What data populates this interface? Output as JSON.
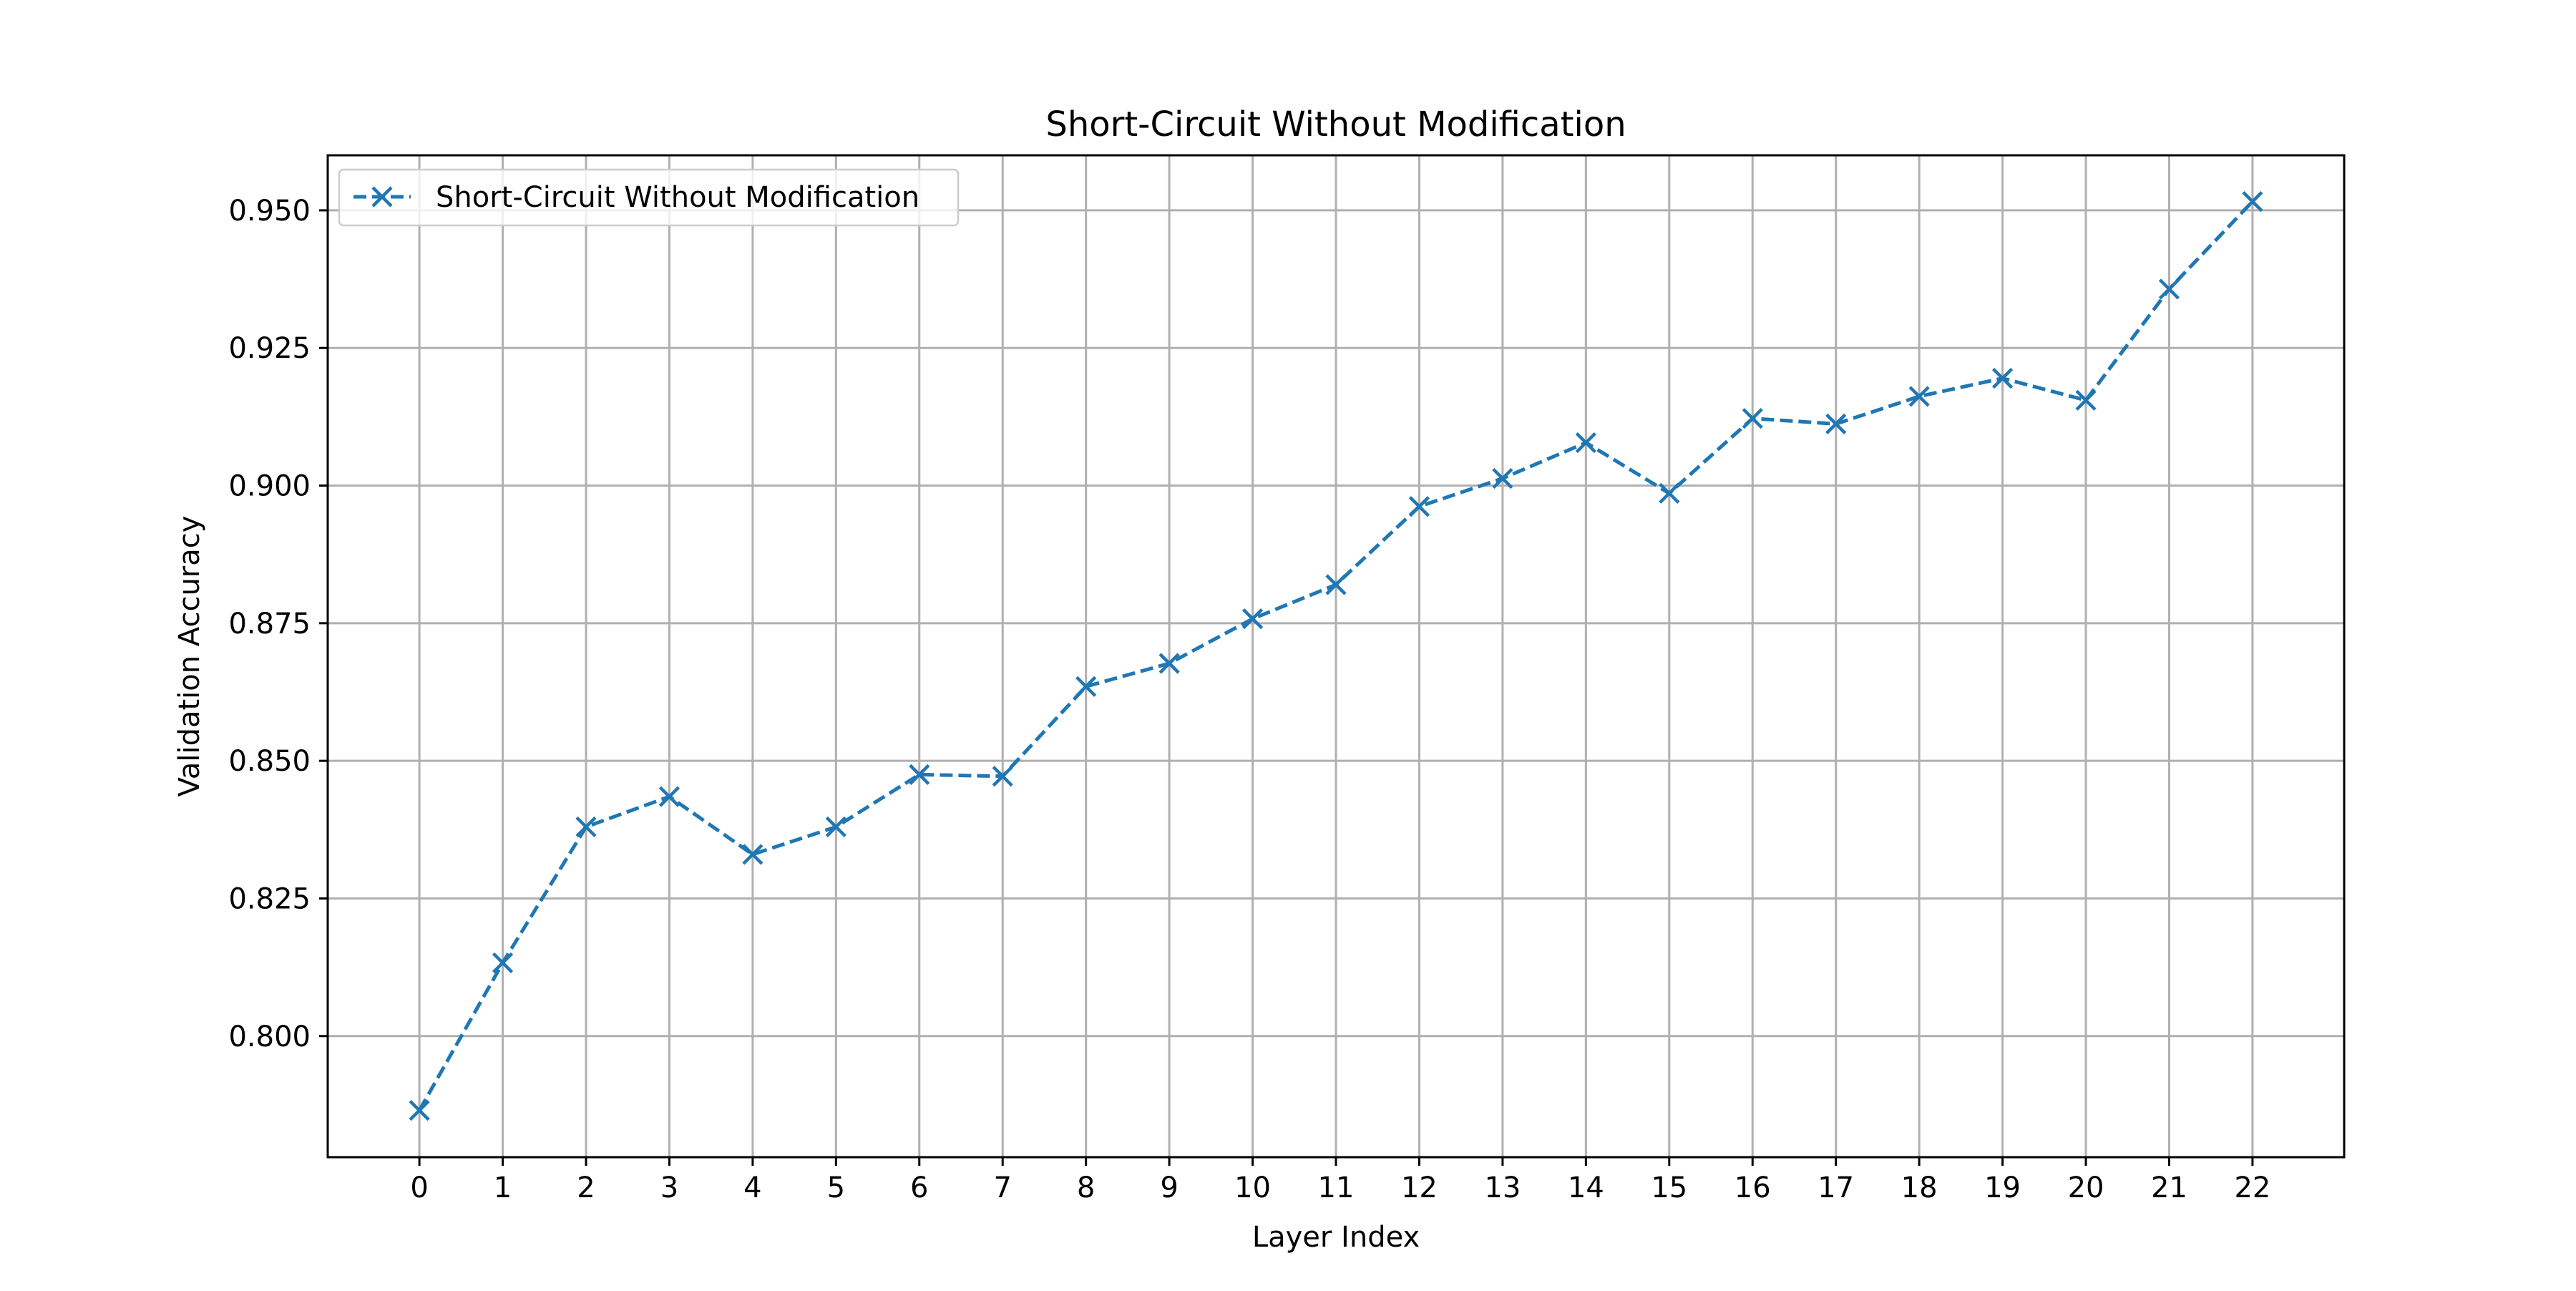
{
  "chart_data": {
    "type": "line",
    "title": "Short-Circuit Without Modification",
    "xlabel": "Layer Index",
    "ylabel": "Validation Accuracy",
    "x": [
      0,
      1,
      2,
      3,
      4,
      5,
      6,
      7,
      8,
      9,
      10,
      11,
      12,
      13,
      14,
      15,
      16,
      17,
      18,
      19,
      20,
      21,
      22
    ],
    "xticks": [
      "0",
      "1",
      "2",
      "3",
      "4",
      "5",
      "6",
      "7",
      "8",
      "9",
      "10",
      "11",
      "12",
      "13",
      "14",
      "15",
      "16",
      "17",
      "18",
      "19",
      "20",
      "21",
      "22"
    ],
    "yticks": [
      "0.800",
      "0.825",
      "0.850",
      "0.875",
      "0.900",
      "0.925",
      "0.950"
    ],
    "xlim": [
      -1.1,
      23.1
    ],
    "ylim": [
      0.778,
      0.96
    ],
    "grid": true,
    "legend_position": "top-left",
    "series": [
      {
        "name": "Short-Circuit Without Modification",
        "color": "#1f77b4",
        "line_style": "dashed",
        "marker": "x",
        "values": [
          0.7865,
          0.8133,
          0.838,
          0.8435,
          0.833,
          0.838,
          0.8475,
          0.8472,
          0.8635,
          0.8677,
          0.8758,
          0.882,
          0.8962,
          0.9013,
          0.9078,
          0.8986,
          0.9122,
          0.9112,
          0.9162,
          0.9195,
          0.9155,
          0.9357,
          0.9516
        ]
      }
    ]
  }
}
